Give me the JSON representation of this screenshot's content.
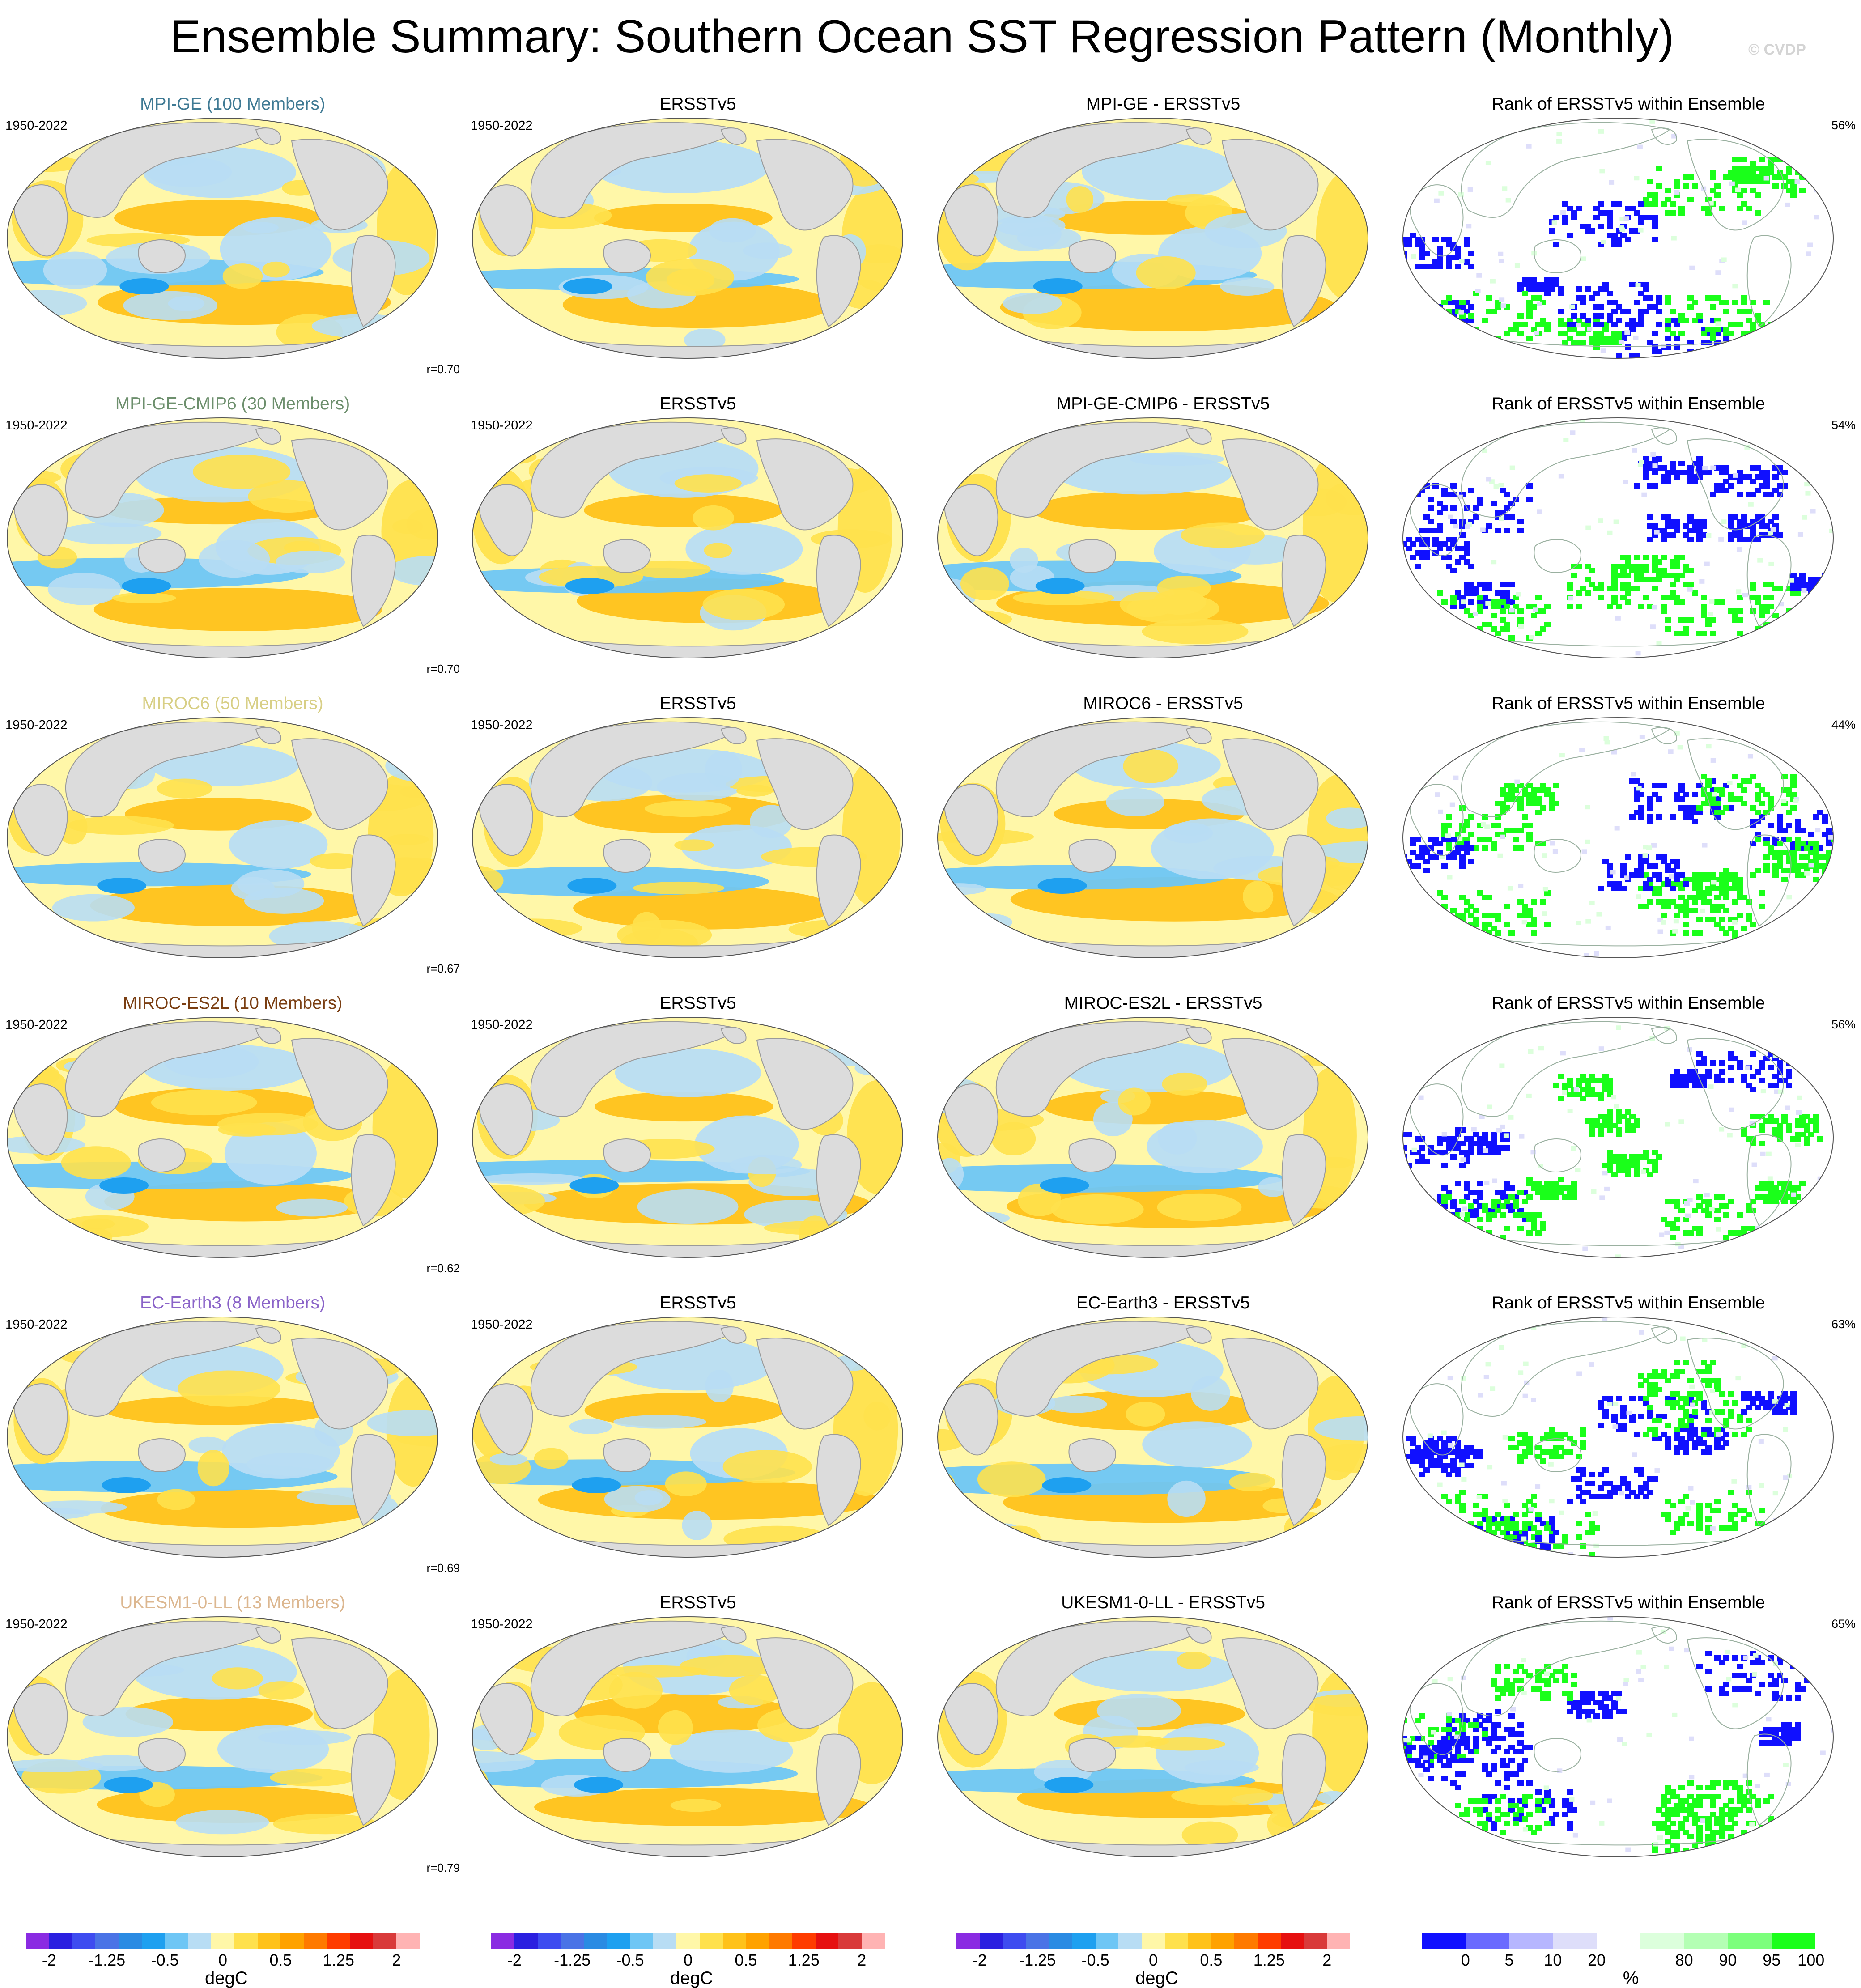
{
  "title": "Ensemble Summary: Southern Ocean SST Regression Pattern (Monthly)",
  "watermark": "© CVDP",
  "colors": {
    "land": "#dcdcdc",
    "coast": "#9a9a9a",
    "diverging": [
      "#8a2be2",
      "#2b1fe0",
      "#3e4cf0",
      "#4a73e6",
      "#2a8be3",
      "#1ea0f0",
      "#6ec6f5",
      "#b8ddf4",
      "#fff7a8",
      "#ffe14d",
      "#ffc21a",
      "#ffa200",
      "#ff7a00",
      "#ff3c00",
      "#e61010",
      "#d93a3a",
      "#ffb3b3"
    ],
    "rank": [
      "#1010ff",
      "#6a6aff",
      "#b6b6ff",
      "#dedefa",
      "#ffffff",
      "#dcffdc",
      "#b4ffb4",
      "#7cff7c",
      "#1aff1a"
    ]
  },
  "rows": [
    {
      "model": "MPI-GE (100 Members)",
      "model_color": "#3f7a94",
      "years_model": "1950-2022",
      "years_obs": "1950-2022",
      "obs_title": "ERSSTv5",
      "diff_title": "MPI-GE - ERSSTv5",
      "rank_title": "Rank of ERSSTv5 within Ensemble",
      "rank_pct": "56%",
      "pattern_corr": "r=0.70"
    },
    {
      "model": "MPI-GE-CMIP6 (30 Members)",
      "model_color": "#6d8f6d",
      "years_model": "1950-2022",
      "years_obs": "1950-2022",
      "obs_title": "ERSSTv5",
      "diff_title": "MPI-GE-CMIP6 - ERSSTv5",
      "rank_title": "Rank of ERSSTv5 within Ensemble",
      "rank_pct": "54%",
      "pattern_corr": "r=0.70"
    },
    {
      "model": "MIROC6 (50 Members)",
      "model_color": "#d8cf86",
      "years_model": "1950-2022",
      "years_obs": "1950-2022",
      "obs_title": "ERSSTv5",
      "diff_title": "MIROC6 - ERSSTv5",
      "rank_title": "Rank of ERSSTv5 within Ensemble",
      "rank_pct": "44%",
      "pattern_corr": "r=0.67"
    },
    {
      "model": "MIROC-ES2L (10 Members)",
      "model_color": "#7a3e12",
      "years_model": "1950-2022",
      "years_obs": "1950-2022",
      "obs_title": "ERSSTv5",
      "diff_title": "MIROC-ES2L - ERSSTv5",
      "rank_title": "Rank of ERSSTv5 within Ensemble",
      "rank_pct": "56%",
      "pattern_corr": "r=0.62"
    },
    {
      "model": "EC-Earth3 (8 Members)",
      "model_color": "#8a63c8",
      "years_model": "1950-2022",
      "years_obs": "1950-2022",
      "obs_title": "ERSSTv5",
      "diff_title": "EC-Earth3 - ERSSTv5",
      "rank_title": "Rank of ERSSTv5 within Ensemble",
      "rank_pct": "63%",
      "pattern_corr": "r=0.69"
    },
    {
      "model": "UKESM1-0-LL (13 Members)",
      "model_color": "#dcb790",
      "years_model": "1950-2022",
      "years_obs": "1950-2022",
      "obs_title": "ERSSTv5",
      "diff_title": "UKESM1-0-LL - ERSSTv5",
      "rank_title": "Rank of ERSSTv5 within Ensemble",
      "rank_pct": "65%",
      "pattern_corr": "r=0.79"
    }
  ],
  "colorbars": {
    "sst": {
      "labels": [
        "-2",
        "-1.25",
        "-0.5",
        "0",
        "0.5",
        "1.25",
        "2"
      ],
      "unit": "degC"
    },
    "rank": {
      "labels": [
        "0",
        "5",
        "10",
        "20",
        "80",
        "90",
        "95",
        "100"
      ],
      "unit": "%"
    }
  }
}
